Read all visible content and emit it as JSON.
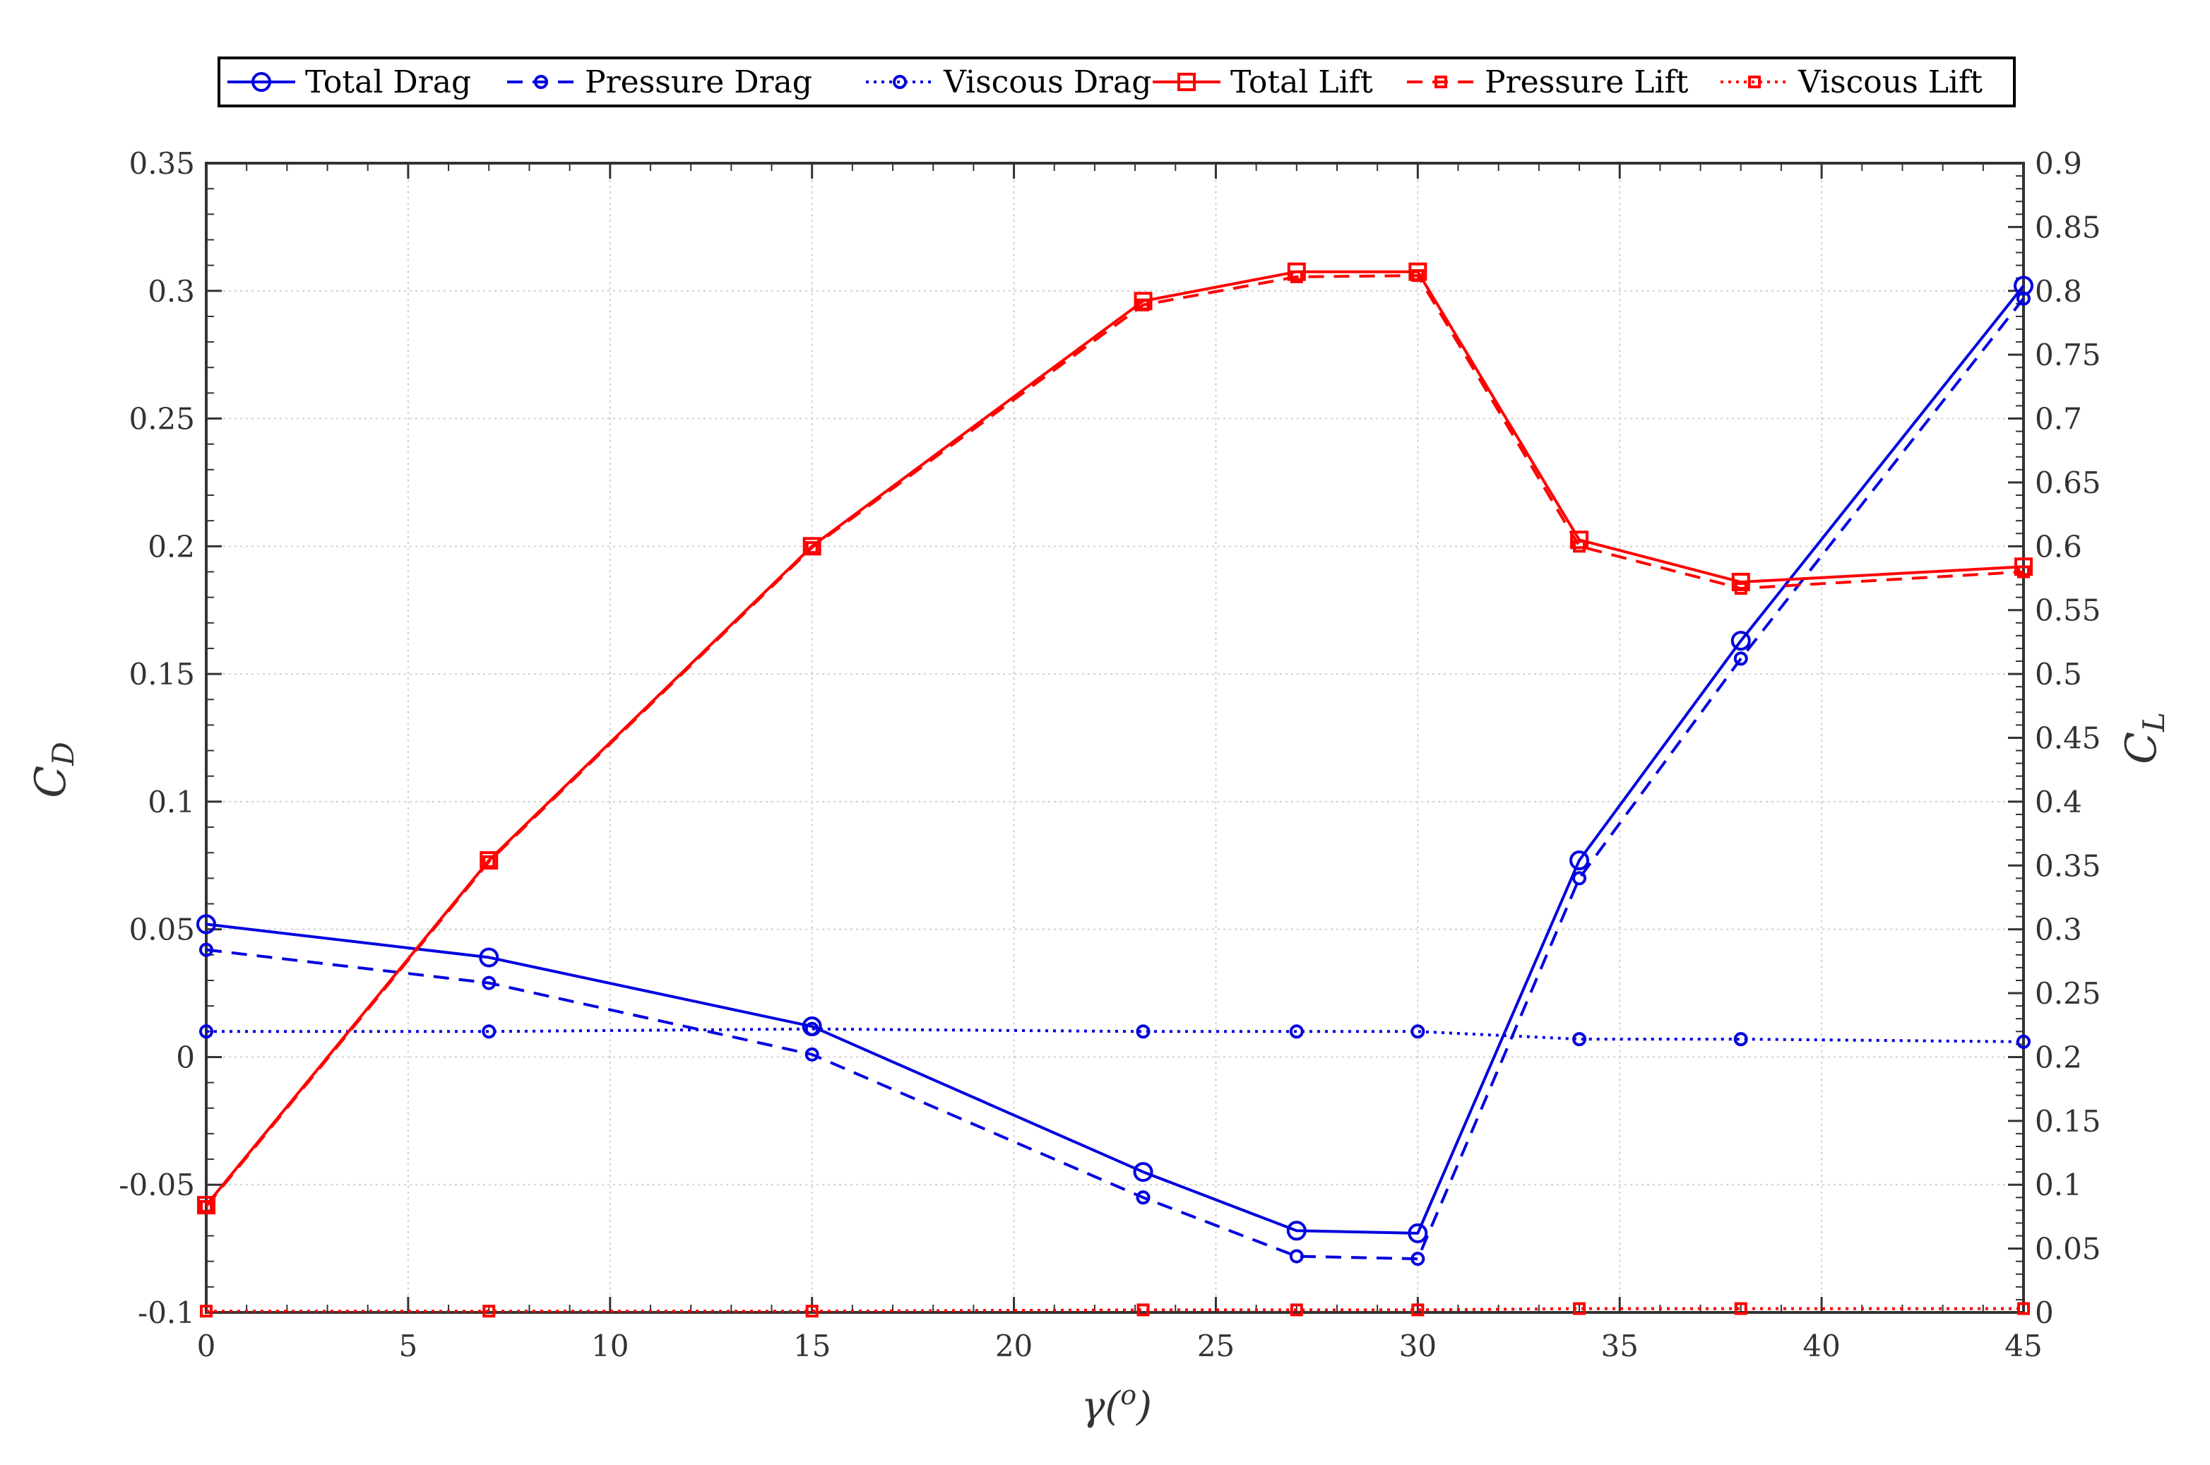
{
  "colors": {
    "drag": "#0000e0",
    "lift": "#ff0000",
    "grid": "#d0d0d0",
    "axis": "#333333"
  },
  "axes": {
    "x_label_main": "γ(",
    "x_label_sup": "o",
    "x_label_close": ")",
    "y_left_main": "C",
    "y_left_sub": "D",
    "y_right_main": "C",
    "y_right_sub": "L"
  },
  "chart_data": {
    "type": "line",
    "title": "",
    "xlabel": "γ(o)",
    "ylabel": "C_D",
    "ylabel_right": "C_L",
    "xlim": [
      0,
      45
    ],
    "ylim": [
      -0.1,
      0.35
    ],
    "ylim_right": [
      0,
      0.9
    ],
    "x_ticks": [
      "0",
      "5",
      "10",
      "15",
      "20",
      "25",
      "30",
      "35",
      "40",
      "45"
    ],
    "y_ticks": [
      "-0.1",
      "-0.05",
      "0",
      "0.05",
      "0.1",
      "0.15",
      "0.2",
      "0.25",
      "0.3",
      "0.35"
    ],
    "y_right_ticks": [
      "0",
      "0.05",
      "0.1",
      "0.15",
      "0.2",
      "0.25",
      "0.3",
      "0.35",
      "0.4",
      "0.45",
      "0.5",
      "0.55",
      "0.6",
      "0.65",
      "0.7",
      "0.75",
      "0.8",
      "0.85",
      "0.9"
    ],
    "grid": true,
    "legend_position": "top",
    "x": [
      0,
      7,
      15,
      23.2,
      27,
      30,
      34,
      38,
      45
    ],
    "series": [
      {
        "name": "Total Drag",
        "axis": "left",
        "color": "drag",
        "dash": "solid",
        "marker": "circle",
        "values": [
          0.052,
          0.039,
          0.012,
          -0.045,
          -0.068,
          -0.069,
          0.077,
          0.163,
          0.302
        ]
      },
      {
        "name": "Pressure Drag",
        "axis": "left",
        "color": "drag",
        "dash": "dashed",
        "marker": "small-circle",
        "values": [
          0.042,
          0.029,
          0.001,
          -0.055,
          -0.078,
          -0.079,
          0.07,
          0.156,
          0.297
        ]
      },
      {
        "name": "Viscous Drag",
        "axis": "left",
        "color": "drag",
        "dash": "dotted",
        "marker": "small-circle",
        "values": [
          0.01,
          0.01,
          0.011,
          0.01,
          0.01,
          0.01,
          0.007,
          0.007,
          0.006
        ]
      },
      {
        "name": "Total Lift",
        "axis": "right",
        "color": "lift",
        "dash": "solid",
        "marker": "square",
        "values": [
          0.084,
          0.354,
          0.6,
          0.792,
          0.815,
          0.815,
          0.605,
          0.572,
          0.584
        ]
      },
      {
        "name": "Pressure Lift",
        "axis": "right",
        "color": "lift",
        "dash": "dashed",
        "marker": "small-square",
        "values": [
          0.083,
          0.353,
          0.599,
          0.789,
          0.811,
          0.812,
          0.6,
          0.567,
          0.58
        ]
      },
      {
        "name": "Viscous Lift",
        "axis": "right",
        "color": "lift",
        "dash": "dotted",
        "marker": "small-square",
        "values": [
          0.001,
          0.001,
          0.001,
          0.002,
          0.002,
          0.002,
          0.003,
          0.003,
          0.003
        ]
      }
    ]
  }
}
